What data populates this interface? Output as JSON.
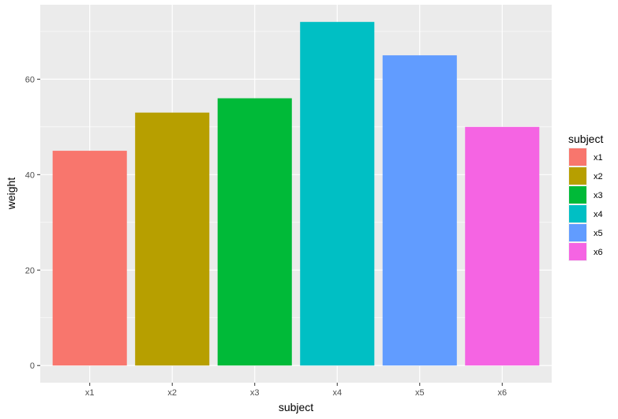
{
  "chart_data": {
    "type": "bar",
    "title": "",
    "xlabel": "subject",
    "ylabel": "weight",
    "categories": [
      "x1",
      "x2",
      "x3",
      "x4",
      "x5",
      "x6"
    ],
    "values": [
      45,
      53,
      56,
      72,
      65,
      50
    ],
    "colors": [
      "#F8766D",
      "#B79F00",
      "#00BA38",
      "#00BFC4",
      "#619CFF",
      "#F564E3"
    ],
    "ylim": [
      -3.6,
      75.6
    ],
    "y_ticks": [
      0,
      20,
      40,
      60
    ],
    "grid": true,
    "panel_background": "#EBEBEB",
    "grid_color": "#FFFFFF",
    "legend": {
      "title": "subject",
      "position": "right",
      "entries": [
        "x1",
        "x2",
        "x3",
        "x4",
        "x5",
        "x6"
      ]
    }
  }
}
